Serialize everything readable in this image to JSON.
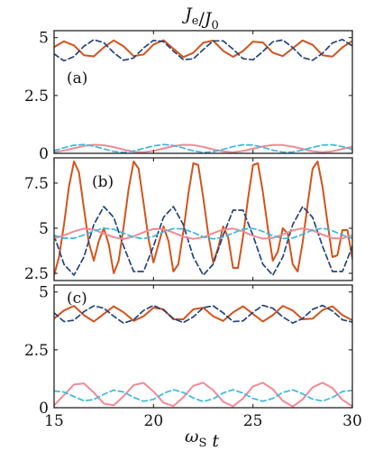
{
  "figure": {
    "title": "J_e/J_0",
    "xlabel": "ω_S t"
  },
  "colors": {
    "solid_dark": "#d4531c",
    "dashed_dark": "#24447c",
    "solid_light": "#f18a94",
    "dashed_light": "#3cb8e0"
  },
  "chart_data": [
    {
      "type": "line",
      "panel_label": "(a)",
      "xlim": [
        15,
        30
      ],
      "ylim": [
        0,
        5.3
      ],
      "xticks": [
        15,
        20,
        25,
        30
      ],
      "yticks": [
        0,
        2.5,
        5
      ],
      "ytick_labels": [
        "0",
        "2.5",
        "5"
      ],
      "series": [
        {
          "style": "solid",
          "color": "#d4531c",
          "x": [
            15,
            15.5,
            16,
            16.5,
            17,
            17.5,
            18,
            18.5,
            19,
            19.5,
            20,
            20.5,
            21,
            21.5,
            22,
            22.5,
            23,
            23.5,
            24,
            24.5,
            25,
            25.5,
            26,
            26.5,
            27,
            27.5,
            28,
            28.5,
            29,
            29.5,
            30
          ],
          "y": [
            4.59,
            4.84,
            4.66,
            4.24,
            4.19,
            4.58,
            4.88,
            4.62,
            4.2,
            4.27,
            4.7,
            4.89,
            4.52,
            4.16,
            4.34,
            4.78,
            4.87,
            4.43,
            4.17,
            4.42,
            4.83,
            4.79,
            4.35,
            4.2,
            4.54,
            4.88,
            4.69,
            4.24,
            4.18,
            4.58,
            4.86
          ]
        },
        {
          "style": "dashed",
          "color": "#24447c",
          "x": [
            15,
            15.5,
            16,
            16.5,
            17,
            17.5,
            18,
            18.5,
            19,
            19.5,
            20,
            20.5,
            21,
            21.5,
            22,
            22.5,
            23,
            23.5,
            24,
            24.5,
            25,
            25.5,
            26,
            26.5,
            27,
            27.5,
            28,
            28.5,
            29,
            29.5,
            30
          ],
          "y": [
            4.3,
            4.0,
            4.18,
            4.63,
            4.91,
            4.78,
            4.35,
            4.02,
            4.12,
            4.55,
            4.88,
            4.83,
            4.42,
            4.05,
            4.08,
            4.48,
            4.86,
            4.86,
            4.5,
            4.09,
            4.04,
            4.4,
            4.82,
            4.9,
            4.57,
            4.14,
            4.02,
            4.32,
            4.77,
            4.92,
            4.64
          ]
        },
        {
          "style": "solid",
          "color": "#f18a94",
          "x": [
            15,
            15.5,
            16,
            16.5,
            17,
            17.5,
            18,
            18.5,
            19,
            19.5,
            20,
            20.5,
            21,
            21.5,
            22,
            22.5,
            23,
            23.5,
            24,
            24.5,
            25,
            25.5,
            26,
            26.5,
            27,
            27.5,
            28,
            28.5,
            29,
            29.5,
            30
          ],
          "y": [
            0.05,
            0.12,
            0.22,
            0.32,
            0.37,
            0.35,
            0.27,
            0.16,
            0.07,
            0.05,
            0.11,
            0.21,
            0.31,
            0.37,
            0.36,
            0.28,
            0.17,
            0.08,
            0.05,
            0.1,
            0.2,
            0.3,
            0.36,
            0.36,
            0.29,
            0.19,
            0.09,
            0.05,
            0.09,
            0.19,
            0.29
          ]
        },
        {
          "style": "dashed",
          "color": "#3cb8e0",
          "x": [
            15,
            15.5,
            16,
            16.5,
            17,
            17.5,
            18,
            18.5,
            19,
            19.5,
            20,
            20.5,
            21,
            21.5,
            22,
            22.5,
            23,
            23.5,
            24,
            24.5,
            25,
            25.5,
            26,
            26.5,
            27,
            27.5,
            28,
            28.5,
            29,
            29.5,
            30
          ],
          "y": [
            0.12,
            0.24,
            0.35,
            0.38,
            0.31,
            0.19,
            0.08,
            0.04,
            0.1,
            0.21,
            0.32,
            0.38,
            0.34,
            0.23,
            0.11,
            0.04,
            0.07,
            0.17,
            0.29,
            0.37,
            0.36,
            0.26,
            0.14,
            0.05,
            0.06,
            0.14,
            0.26,
            0.36,
            0.37,
            0.29,
            0.17
          ]
        }
      ]
    },
    {
      "type": "line",
      "panel_label": "(b)",
      "xlim": [
        15,
        30
      ],
      "ylim": [
        2.1,
        8.9
      ],
      "xticks": [
        15,
        20,
        25,
        30
      ],
      "yticks": [
        2.5,
        5,
        7.5
      ],
      "ytick_labels": [
        "2.5",
        "5",
        "7.5"
      ],
      "series": [
        {
          "style": "solid",
          "color": "#d4531c",
          "x": [
            15,
            15.25,
            15.5,
            15.75,
            16,
            16.25,
            16.5,
            16.75,
            17,
            17.25,
            17.5,
            17.75,
            18,
            18.25,
            18.5,
            18.75,
            19,
            19.25,
            19.5,
            19.75,
            20,
            20.25,
            20.5,
            20.75,
            21,
            21.25,
            21.5,
            21.75,
            22,
            22.25,
            22.5,
            22.75,
            23,
            23.25,
            23.5,
            23.75,
            24,
            24.25,
            24.5,
            24.75,
            25,
            25.25,
            25.5,
            25.75,
            26,
            26.25,
            26.5,
            26.75,
            27,
            27.25,
            27.5,
            27.75,
            28,
            28.25,
            28.5,
            28.75,
            29,
            29.25,
            29.5,
            29.75,
            30
          ],
          "y": [
            2.4,
            3.4,
            5.2,
            7.3,
            8.7,
            8.1,
            6.1,
            4.2,
            3.2,
            4.3,
            5.0,
            4.1,
            2.5,
            3.2,
            5.1,
            7.2,
            8.7,
            8.3,
            6.4,
            4.4,
            3.1,
            4.1,
            5.1,
            4.3,
            2.6,
            3.0,
            4.8,
            6.9,
            8.6,
            8.5,
            6.7,
            4.7,
            3.1,
            3.9,
            5.1,
            4.5,
            2.8,
            2.8,
            4.5,
            6.6,
            8.5,
            8.6,
            7.0,
            5.0,
            3.2,
            3.7,
            5.0,
            4.7,
            3.0,
            2.6,
            4.2,
            6.3,
            8.3,
            8.7,
            7.3,
            5.3,
            3.4,
            3.5,
            4.9,
            4.9,
            3.3
          ]
        },
        {
          "style": "dashed",
          "color": "#24447c",
          "x": [
            15,
            15.5,
            16,
            16.5,
            17,
            17.5,
            18,
            18.5,
            19,
            19.5,
            20,
            20.5,
            21,
            21.5,
            22,
            22.5,
            23,
            23.5,
            24,
            24.5,
            25,
            25.5,
            26,
            26.5,
            27,
            27.5,
            28,
            28.5,
            29,
            29.5,
            30
          ],
          "y": [
            4.6,
            3.0,
            2.4,
            3.4,
            5.2,
            6.2,
            5.6,
            4.0,
            2.6,
            2.6,
            4.0,
            5.6,
            6.2,
            5.2,
            3.4,
            2.4,
            3.0,
            4.6,
            6.0,
            6.0,
            4.6,
            3.0,
            2.4,
            3.4,
            5.2,
            6.2,
            5.6,
            4.0,
            2.6,
            2.6,
            4.0
          ]
        },
        {
          "style": "solid",
          "color": "#f18a94",
          "x": [
            15,
            15.5,
            16,
            16.5,
            17,
            17.5,
            18,
            18.5,
            19,
            19.5,
            20,
            20.5,
            21,
            21.5,
            22,
            22.5,
            23,
            23.5,
            24,
            24.5,
            25,
            25.5,
            26,
            26.5,
            27,
            27.5,
            28,
            28.5,
            29,
            29.5,
            30
          ],
          "y": [
            4.45,
            4.6,
            4.82,
            4.98,
            4.92,
            4.7,
            4.5,
            4.4,
            4.55,
            4.78,
            4.96,
            4.95,
            4.76,
            4.53,
            4.41,
            4.5,
            4.72,
            4.93,
            4.98,
            4.82,
            4.58,
            4.42,
            4.46,
            4.65,
            4.88,
            4.99,
            4.88,
            4.64,
            4.45,
            4.43,
            4.6
          ]
        },
        {
          "style": "dashed",
          "color": "#3cb8e0",
          "x": [
            15,
            15.5,
            16,
            16.5,
            17,
            17.5,
            18,
            18.5,
            19,
            19.5,
            20,
            20.5,
            21,
            21.5,
            22,
            22.5,
            23,
            23.5,
            24,
            24.5,
            25,
            25.5,
            26,
            26.5,
            27,
            27.5,
            28,
            28.5,
            29,
            29.5,
            30
          ],
          "y": [
            4.6,
            4.45,
            4.45,
            4.62,
            4.85,
            5.0,
            4.94,
            4.72,
            4.5,
            4.42,
            4.55,
            4.8,
            4.98,
            4.96,
            4.76,
            4.52,
            4.41,
            4.5,
            4.73,
            4.95,
            4.99,
            4.82,
            4.58,
            4.43,
            4.46,
            4.66,
            4.9,
            5.0,
            4.86,
            4.62,
            4.44
          ]
        }
      ]
    },
    {
      "type": "line",
      "panel_label": "(c)",
      "xlim": [
        15,
        30
      ],
      "ylim": [
        0,
        5.3
      ],
      "xticks": [
        15,
        20,
        25,
        30
      ],
      "yticks": [
        0,
        2.5,
        5
      ],
      "ytick_labels": [
        "0",
        "2.5",
        "5"
      ],
      "series": [
        {
          "style": "solid",
          "color": "#d4531c",
          "x": [
            15,
            15.5,
            16,
            16.5,
            17,
            17.5,
            18,
            18.5,
            19,
            19.5,
            20,
            20.5,
            21,
            21.5,
            22,
            22.5,
            23,
            23.5,
            24,
            24.5,
            25,
            25.5,
            26,
            26.5,
            27,
            27.5,
            28,
            28.5,
            29,
            29.5,
            30
          ],
          "y": [
            3.85,
            4.2,
            4.4,
            4.0,
            3.72,
            4.05,
            4.38,
            4.12,
            3.75,
            3.95,
            4.32,
            4.25,
            3.82,
            3.82,
            4.25,
            4.32,
            3.95,
            3.75,
            4.12,
            4.38,
            4.05,
            3.72,
            4.0,
            4.4,
            4.2,
            3.82,
            3.85,
            4.22,
            4.38,
            4.0,
            3.78
          ]
        },
        {
          "style": "dashed",
          "color": "#24447c",
          "x": [
            15,
            15.5,
            16,
            16.5,
            17,
            17.5,
            18,
            18.5,
            19,
            19.5,
            20,
            20.5,
            21,
            21.5,
            22,
            22.5,
            23,
            23.5,
            24,
            24.5,
            25,
            25.5,
            26,
            26.5,
            27,
            27.5,
            28,
            28.5,
            29,
            29.5,
            30
          ],
          "y": [
            4.1,
            3.72,
            3.78,
            4.15,
            4.4,
            4.3,
            3.95,
            3.65,
            3.8,
            4.2,
            4.42,
            4.22,
            3.85,
            3.68,
            3.92,
            4.32,
            4.4,
            4.1,
            3.72,
            3.75,
            4.12,
            4.42,
            4.3,
            3.92,
            3.66,
            3.85,
            4.25,
            4.42,
            4.18,
            3.8,
            3.7
          ]
        },
        {
          "style": "solid",
          "color": "#f18a94",
          "x": [
            15,
            15.5,
            16,
            16.5,
            17,
            17.5,
            18,
            18.5,
            19,
            19.5,
            20,
            20.5,
            21,
            21.5,
            22,
            22.5,
            23,
            23.5,
            24,
            24.5,
            25,
            25.5,
            26,
            26.5,
            27,
            27.5,
            28,
            28.5,
            29,
            29.5,
            30
          ],
          "y": [
            0.1,
            0.55,
            1.0,
            1.05,
            0.65,
            0.18,
            0.1,
            0.5,
            0.98,
            1.07,
            0.7,
            0.22,
            0.07,
            0.45,
            0.95,
            1.08,
            0.76,
            0.26,
            0.06,
            0.4,
            0.92,
            1.08,
            0.8,
            0.3,
            0.05,
            0.36,
            0.88,
            1.08,
            0.85,
            0.34,
            0.06
          ]
        },
        {
          "style": "dashed",
          "color": "#3cb8e0",
          "x": [
            15,
            15.5,
            16,
            16.5,
            17,
            17.5,
            18,
            18.5,
            19,
            19.5,
            20,
            20.5,
            21,
            21.5,
            22,
            22.5,
            23,
            23.5,
            24,
            24.5,
            25,
            25.5,
            26,
            26.5,
            27,
            27.5,
            28,
            28.5,
            29,
            29.5,
            30
          ],
          "y": [
            0.72,
            0.68,
            0.48,
            0.3,
            0.35,
            0.58,
            0.76,
            0.68,
            0.45,
            0.28,
            0.36,
            0.62,
            0.78,
            0.66,
            0.42,
            0.27,
            0.38,
            0.64,
            0.78,
            0.63,
            0.4,
            0.28,
            0.4,
            0.66,
            0.77,
            0.6,
            0.37,
            0.29,
            0.44,
            0.7,
            0.75
          ]
        }
      ]
    }
  ]
}
